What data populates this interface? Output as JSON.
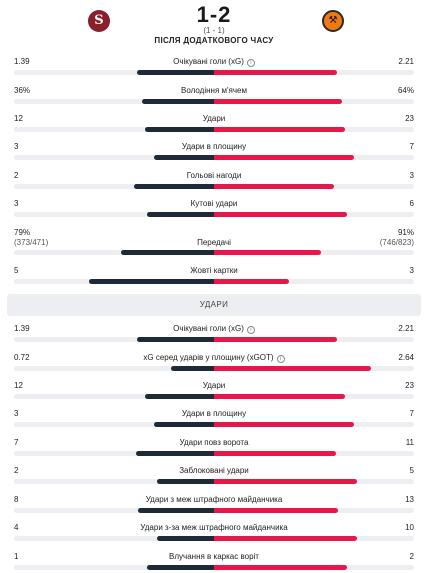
{
  "match": {
    "home_logo_letter": "S",
    "away_logo_letter": "⚒",
    "score": "1-2",
    "aggregate": "(1 - 1)",
    "after_extra_time": "ПІСЛЯ ДОДАТКОВОГО ЧАСУ"
  },
  "colors": {
    "home": "#1e2a35",
    "away": "#e8174a",
    "track": "#eceef1"
  },
  "section_title": "УДАРИ",
  "top_stats": [
    {
      "label": "Очікувані голи (xG)",
      "info": true,
      "home": "1.39",
      "away": "2.21",
      "home_share": 0.386,
      "away_share": 0.614
    },
    {
      "label": "Володіння м'ячем",
      "info": false,
      "home": "36%",
      "away": "64%",
      "home_share": 0.36,
      "away_share": 0.64
    },
    {
      "label": "Удари",
      "info": false,
      "home": "12",
      "away": "23",
      "home_share": 0.343,
      "away_share": 0.657
    },
    {
      "label": "Удари в площину",
      "info": false,
      "home": "3",
      "away": "7",
      "home_share": 0.3,
      "away_share": 0.7
    },
    {
      "label": "Гольові нагоди",
      "info": false,
      "home": "2",
      "away": "3",
      "home_share": 0.4,
      "away_share": 0.6
    },
    {
      "label": "Кутові удари",
      "info": false,
      "home": "3",
      "away": "6",
      "home_share": 0.333,
      "away_share": 0.667
    },
    {
      "label": "Передачі",
      "info": false,
      "home": "79%",
      "away": "91%",
      "home_sub": "(373/471)",
      "away_sub": "(746/823)",
      "home_share": 0.465,
      "away_share": 0.535
    },
    {
      "label": "Жовті картки",
      "info": false,
      "home": "5",
      "away": "3",
      "home_share": 0.625,
      "away_share": 0.375
    }
  ],
  "shot_stats": [
    {
      "label": "Очікувані голи (xG)",
      "info": true,
      "home": "1.39",
      "away": "2.21",
      "home_share": 0.386,
      "away_share": 0.614
    },
    {
      "label": "xG серед ударів у площину (xGOT)",
      "info": true,
      "home": "0.72",
      "away": "2.64",
      "home_share": 0.214,
      "away_share": 0.786
    },
    {
      "label": "Удари",
      "info": false,
      "home": "12",
      "away": "23",
      "home_share": 0.343,
      "away_share": 0.657
    },
    {
      "label": "Удари в площину",
      "info": false,
      "home": "3",
      "away": "7",
      "home_share": 0.3,
      "away_share": 0.7
    },
    {
      "label": "Удари повз ворота",
      "info": false,
      "home": "7",
      "away": "11",
      "home_share": 0.389,
      "away_share": 0.611
    },
    {
      "label": "Заблоковані удари",
      "info": false,
      "home": "2",
      "away": "5",
      "home_share": 0.286,
      "away_share": 0.714
    },
    {
      "label": "Удари з меж штрафного майданчика",
      "info": false,
      "home": "8",
      "away": "13",
      "home_share": 0.381,
      "away_share": 0.619
    },
    {
      "label": "Удари з-за меж штрафного майданчика",
      "info": false,
      "home": "4",
      "away": "10",
      "home_share": 0.286,
      "away_share": 0.714
    },
    {
      "label": "Влучання в каркас воріт",
      "info": false,
      "home": "1",
      "away": "2",
      "home_share": 0.333,
      "away_share": 0.667
    }
  ]
}
